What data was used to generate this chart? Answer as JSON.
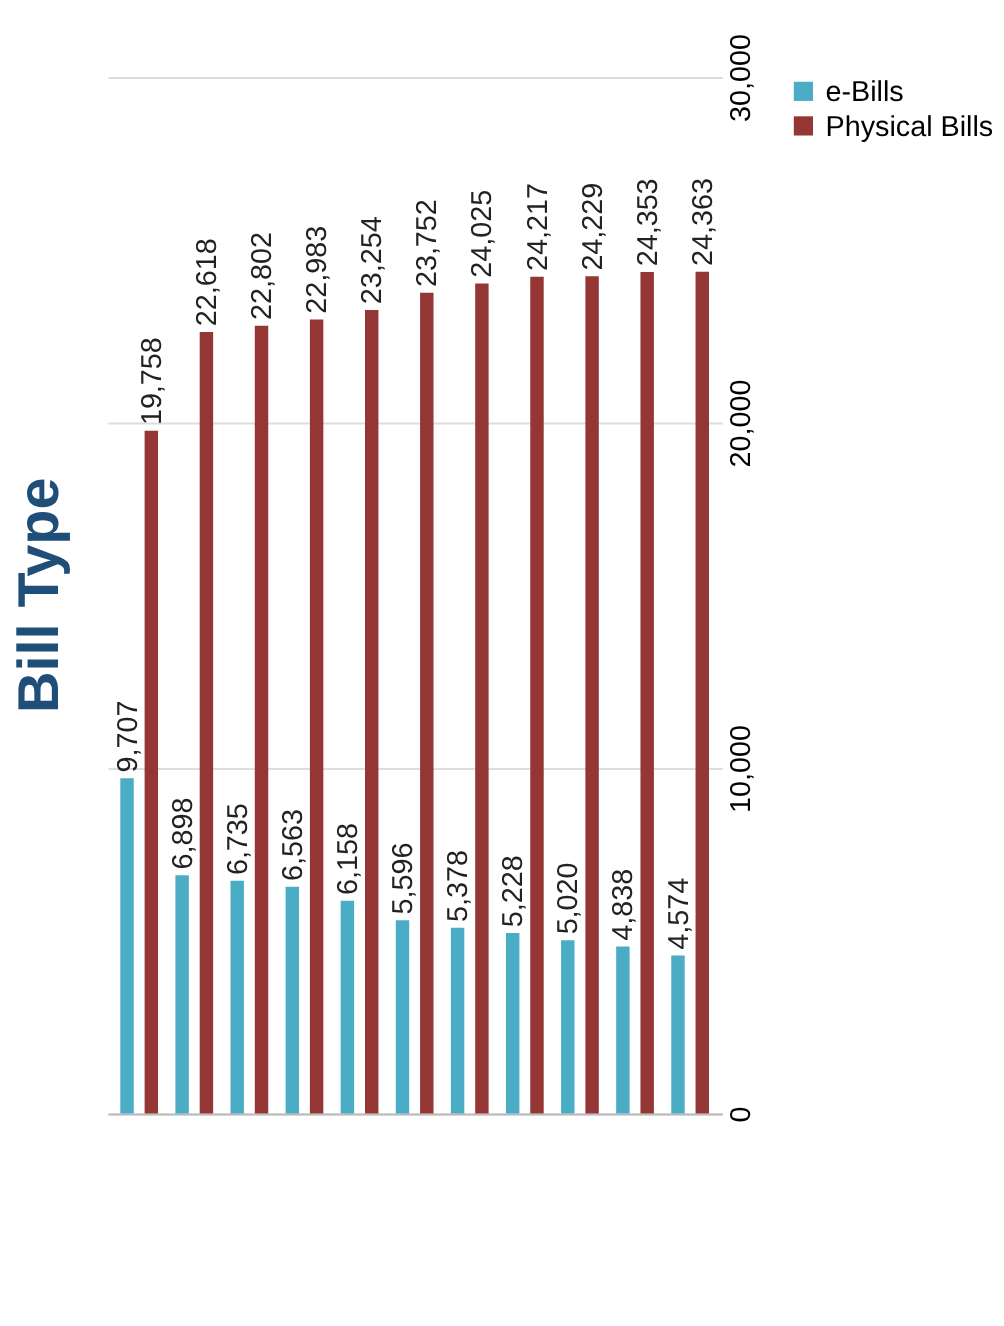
{
  "chart_data": {
    "type": "bar",
    "title": "Bill Type",
    "categories": [
      null,
      null,
      null,
      null,
      null,
      null,
      null,
      null,
      null,
      null,
      null
    ],
    "series": [
      {
        "name": "e-Bills",
        "color": "#4bacc6",
        "values": [
          9707,
          6898,
          6735,
          6563,
          6158,
          5596,
          5378,
          5228,
          5020,
          4838,
          4574
        ],
        "value_labels": [
          "9,707",
          "6,898",
          "6,735",
          "6,563",
          "6,158",
          "5,596",
          "5,378",
          "5,228",
          "5,020",
          "4,838",
          "4,574"
        ]
      },
      {
        "name": "Physical Bills",
        "color": "#943634",
        "values": [
          19758,
          22618,
          22802,
          22983,
          23254,
          23752,
          24025,
          24217,
          24229,
          24353,
          24363
        ],
        "value_labels": [
          "19,758",
          "22,618",
          "22,802",
          "22,983",
          "23,254",
          "23,752",
          "24,025",
          "24,217",
          "24,229",
          "24,353",
          "24,363"
        ]
      }
    ],
    "ylim": [
      0,
      30000
    ],
    "yticks": [
      0,
      {
        "value": 10000,
        "label": "10,000"
      },
      {
        "value": 20000,
        "label": "20,000"
      },
      {
        "value": 30000,
        "label": "30,000"
      }
    ],
    "grid": "y",
    "legend": "right"
  }
}
